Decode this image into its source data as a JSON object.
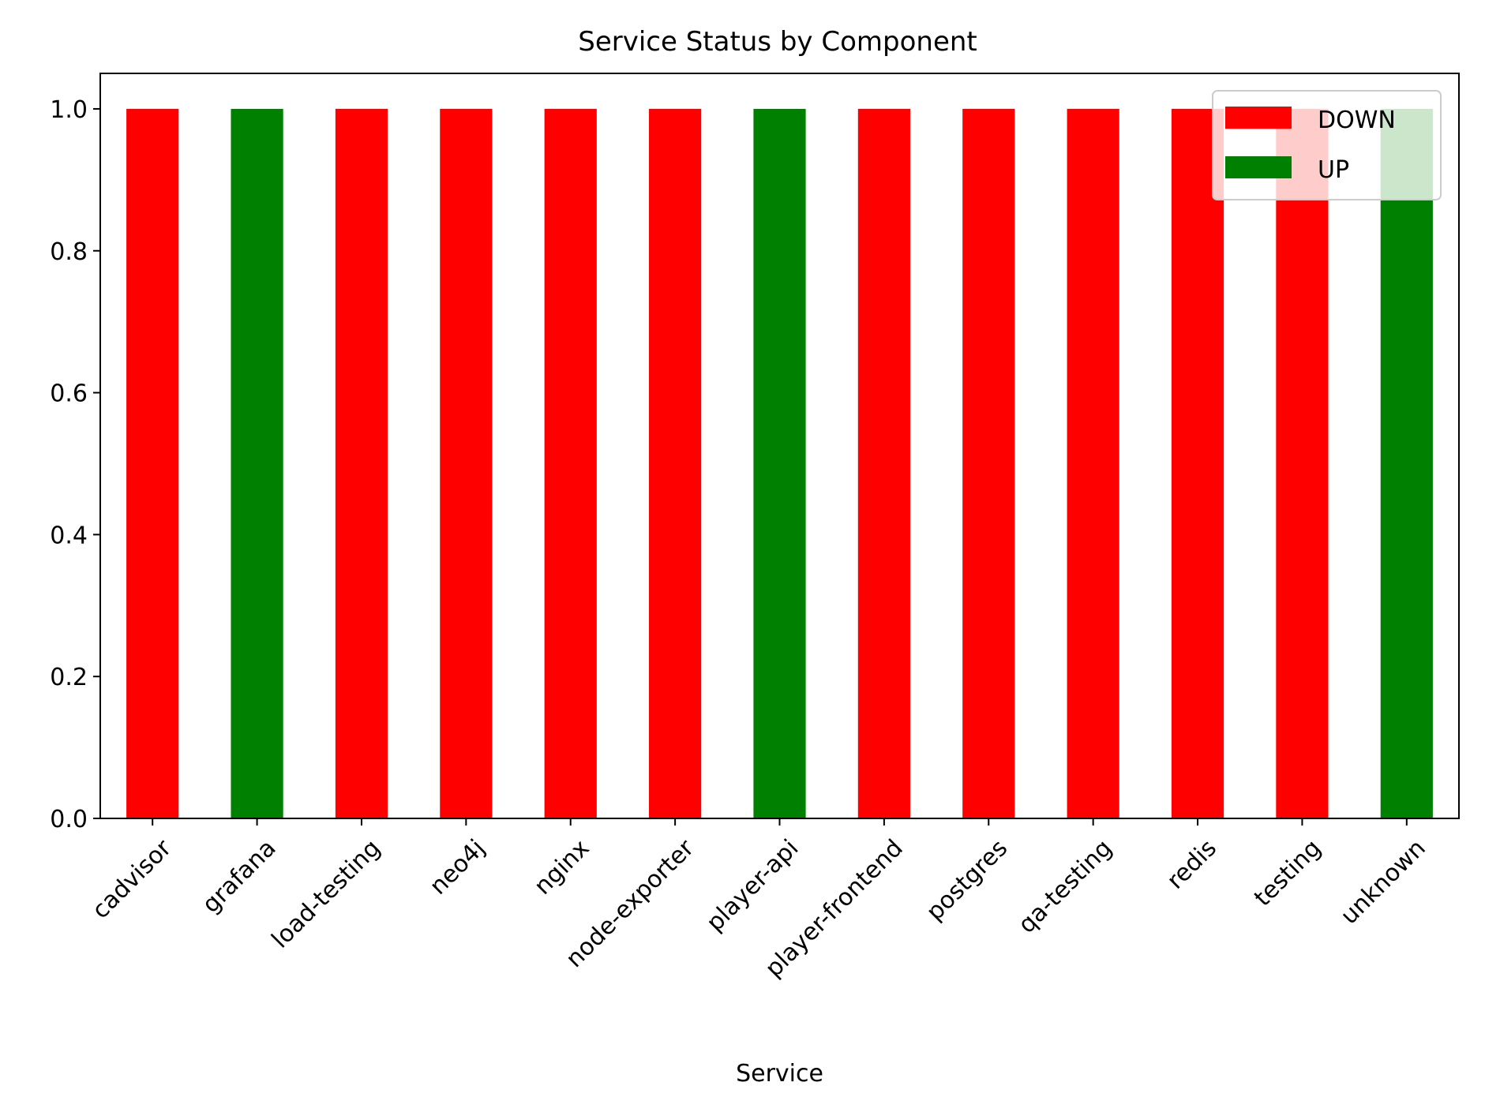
{
  "chart_data": {
    "type": "bar",
    "title": "Service Status by Component",
    "xlabel": "Service",
    "ylabel": "",
    "ylim": [
      0,
      1.05
    ],
    "yticks": [
      0.0,
      0.2,
      0.4,
      0.6,
      0.8,
      1.0
    ],
    "ytick_labels": [
      "0.0",
      "0.2",
      "0.4",
      "0.6",
      "0.8",
      "1.0"
    ],
    "categories": [
      "cadvisor",
      "grafana",
      "load-testing",
      "neo4j",
      "nginx",
      "node-exporter",
      "player-api",
      "player-frontend",
      "postgres",
      "qa-testing",
      "redis",
      "testing",
      "unknown"
    ],
    "series": [
      {
        "name": "DOWN",
        "color": "#ff0000",
        "values": [
          1,
          0,
          1,
          1,
          1,
          1,
          0,
          1,
          1,
          1,
          1,
          1,
          0
        ]
      },
      {
        "name": "UP",
        "color": "#008000",
        "values": [
          0,
          1,
          0,
          0,
          0,
          0,
          1,
          0,
          0,
          0,
          0,
          0,
          1
        ]
      }
    ],
    "stacked": true,
    "grid": false,
    "legend_position": "top-right",
    "xtick_rotation": 45
  }
}
